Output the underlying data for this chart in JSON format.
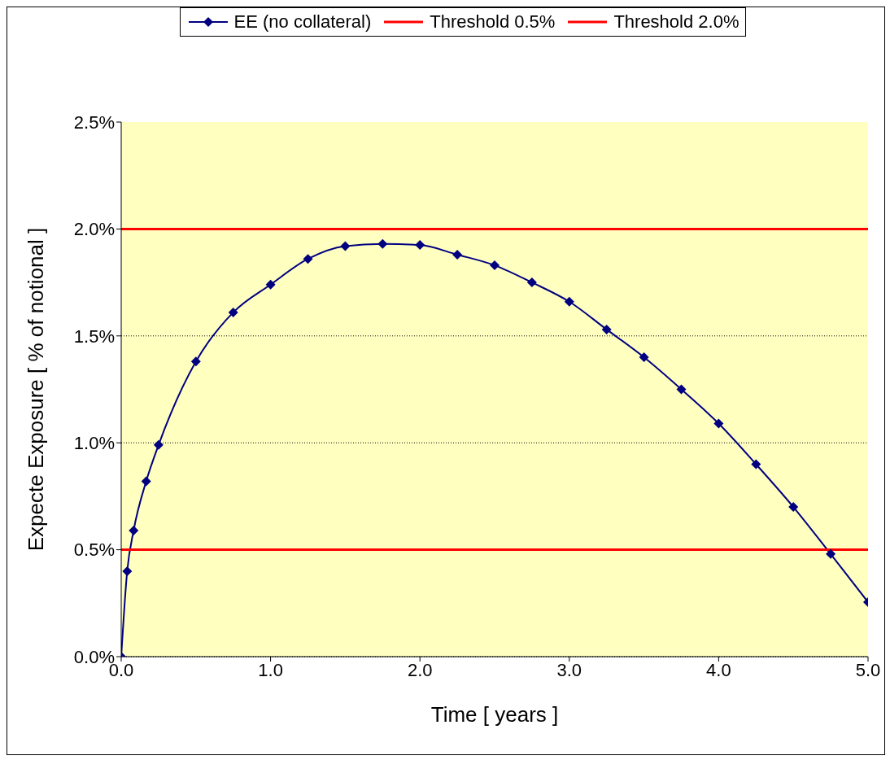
{
  "chart_data": {
    "type": "line",
    "xlabel": "Time  [ years ]",
    "ylabel": "Expecte Exposure  [ % of notional ]",
    "x": [
      0,
      0.04,
      0.083,
      0.167,
      0.25,
      0.5,
      0.75,
      1,
      1.25,
      1.5,
      1.75,
      2,
      2.25,
      2.5,
      2.75,
      3,
      3.25,
      3.5,
      3.75,
      4,
      4.25,
      4.5,
      4.75,
      5
    ],
    "series": [
      {
        "name": "EE (no collateral)",
        "color": "#000080",
        "values": [
          0,
          0.4,
          0.59,
          0.82,
          0.99,
          1.38,
          1.61,
          1.74,
          1.86,
          1.92,
          1.93,
          1.925,
          1.88,
          1.83,
          1.75,
          1.66,
          1.53,
          1.4,
          1.25,
          1.09,
          0.9,
          0.7,
          0.48,
          0.255
        ]
      },
      {
        "name": "Threshold 0.5%",
        "color": "#ff0000",
        "marker": "none",
        "values": [
          0.5,
          0.5,
          0.5,
          0.5,
          0.5,
          0.5,
          0.5,
          0.5,
          0.5,
          0.5,
          0.5,
          0.5,
          0.5,
          0.5,
          0.5,
          0.5,
          0.5,
          0.5,
          0.5,
          0.5,
          0.5,
          0.5,
          0.5,
          0.5
        ]
      },
      {
        "name": "Threshold 2.0%",
        "color": "#ff0000",
        "marker": "none",
        "values": [
          2,
          2,
          2,
          2,
          2,
          2,
          2,
          2,
          2,
          2,
          2,
          2,
          2,
          2,
          2,
          2,
          2,
          2,
          2,
          2,
          2,
          2,
          2,
          2
        ]
      }
    ],
    "xlim": [
      0,
      5
    ],
    "xticks": [
      {
        "value": 0,
        "label": "0.0"
      },
      {
        "value": 1,
        "label": "1.0"
      },
      {
        "value": 2,
        "label": "2.0"
      },
      {
        "value": 3,
        "label": "3.0"
      },
      {
        "value": 4,
        "label": "4.0"
      },
      {
        "value": 5,
        "label": "5.0"
      }
    ],
    "ylim": [
      0,
      2.5
    ],
    "yticks": [
      {
        "value": 0,
        "label": "0.0%"
      },
      {
        "value": 0.5,
        "label": "0.5%"
      },
      {
        "value": 1,
        "label": "1.0%"
      },
      {
        "value": 1.5,
        "label": "1.5%"
      },
      {
        "value": 2,
        "label": "2.0%"
      },
      {
        "value": 2.5,
        "label": "2.5%"
      }
    ],
    "grid": "y",
    "legend": "top",
    "marker": "diamond",
    "line_style": "solid"
  }
}
